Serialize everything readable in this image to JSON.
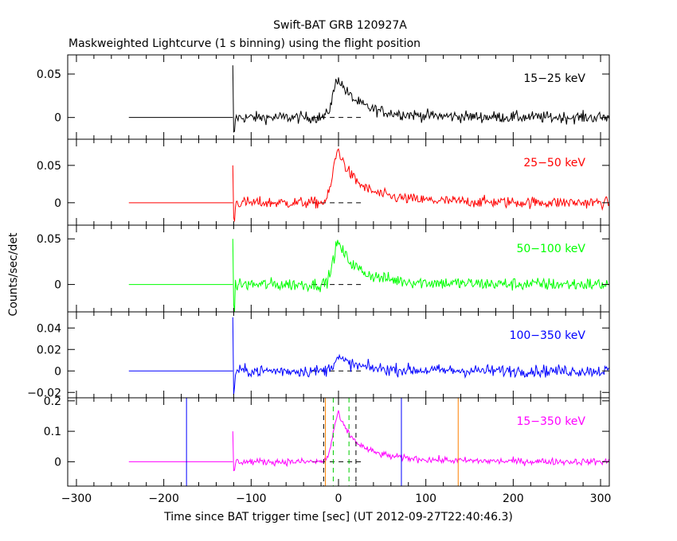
{
  "title": "Swift-BAT GRB 120927A",
  "subtitle": "Maskweighted Lightcurve (1 s binning) using the flight position",
  "xlabel": "Time since BAT trigger time [sec] (UT 2012-09-27T22:40:46.3)",
  "ylabel": "Counts/sec/det",
  "chart_data": {
    "type": "line",
    "title": "Swift-BAT GRB 120927A",
    "subtitle": "Maskweighted Lightcurve (1 s binning) using the flight position",
    "xlabel": "Time since BAT trigger time [sec] (UT 2012-09-27T22:40:46.3)",
    "ylabel": "Counts/sec/det",
    "xlim": [
      -310,
      310
    ],
    "xticks": [
      -300,
      -200,
      -100,
      0,
      100,
      200,
      300
    ],
    "xtick_labels": [
      "−300",
      "−200",
      "−100",
      "0",
      "100",
      "200",
      "300"
    ],
    "grid": false,
    "flat_segment": {
      "start": -240,
      "end": -121,
      "value": 0
    },
    "data_start": -121,
    "peak_time": 0,
    "panels": [
      {
        "label": "15−25 keV",
        "color": "#000000",
        "ylim": [
          -0.025,
          0.072
        ],
        "yticks": [
          0,
          0.05
        ],
        "ytick_labels": [
          "0",
          "0.05"
        ],
        "peak": 0.045,
        "noise": 0.0065,
        "start_spike": 0.06,
        "start_dip": -0.02
      },
      {
        "label": "25−50 keV",
        "color": "#ff0000",
        "ylim": [
          -0.03,
          0.085
        ],
        "yticks": [
          0,
          0.05
        ],
        "ytick_labels": [
          "0",
          "0.05"
        ],
        "peak": 0.07,
        "noise": 0.0075,
        "start_spike": 0.05,
        "start_dip": -0.025
      },
      {
        "label": "50−100 keV",
        "color": "#00ff00",
        "ylim": [
          -0.03,
          0.065
        ],
        "yticks": [
          0,
          0.05
        ],
        "ytick_labels": [
          "0",
          "0.05"
        ],
        "peak": 0.045,
        "noise": 0.007,
        "start_spike": 0.05,
        "start_dip": -0.03
      },
      {
        "label": "100−350 keV",
        "color": "#0000ff",
        "ylim": [
          -0.025,
          0.055
        ],
        "yticks": [
          -0.02,
          0,
          0.02,
          0.04
        ],
        "ytick_labels": [
          "−0.02",
          "0",
          "0.02",
          "0.04"
        ],
        "peak": 0.012,
        "noise": 0.0055,
        "start_spike": 0.05,
        "start_dip": -0.02
      },
      {
        "label": "15−350 keV",
        "color": "#ff00ff",
        "ylim": [
          -0.08,
          0.21
        ],
        "yticks": [
          0,
          0.1,
          0.2
        ],
        "ytick_labels": [
          "0",
          "0.1",
          "0.2"
        ],
        "peak": 0.155,
        "noise": 0.011,
        "start_spike": 0.1,
        "start_dip": -0.03
      }
    ],
    "marker_lines": [
      {
        "x": -174,
        "color": "#0000ff",
        "style": "solid"
      },
      {
        "x": -17,
        "color": "#000000",
        "style": "dashed"
      },
      {
        "x": -15,
        "color": "#ff8000",
        "style": "solid"
      },
      {
        "x": -6,
        "color": "#00cc00",
        "style": "dashed"
      },
      {
        "x": 12,
        "color": "#00cc00",
        "style": "dashed"
      },
      {
        "x": 20,
        "color": "#000000",
        "style": "dashed"
      },
      {
        "x": 72,
        "color": "#0000ff",
        "style": "solid"
      },
      {
        "x": 137,
        "color": "#ff8000",
        "style": "solid"
      }
    ]
  }
}
